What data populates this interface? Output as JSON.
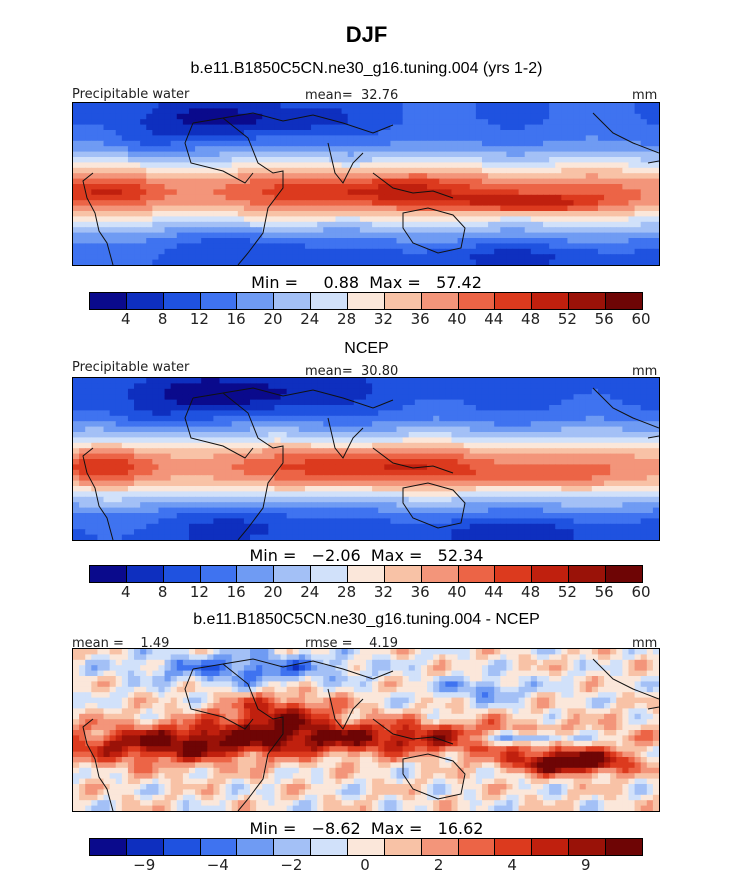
{
  "title": "DJF",
  "palette": [
    "#0a0a8c",
    "#0e2fbf",
    "#1f52e0",
    "#3f73f0",
    "#6f9bf3",
    "#a3c0f6",
    "#d1e1fa",
    "#fbe7da",
    "#f8c2a6",
    "#f3957a",
    "#ec6446",
    "#dc3a1e",
    "#c0200e",
    "#9a1208",
    "#6e0505"
  ],
  "coast_color": "#111111",
  "panels": [
    {
      "title": "b.e11.B1850C5CN.ne30_g16.tuning.004 (yrs 1-2)",
      "left_label": "Precipitable water",
      "mean_label": "mean=  32.76",
      "units": "mm",
      "minmax": "Min =     0.88  Max =   57.42",
      "colorbar_labels": [
        "4",
        "8",
        "12",
        "16",
        "20",
        "24",
        "28",
        "32",
        "36",
        "40",
        "44",
        "48",
        "52",
        "56",
        "60"
      ]
    },
    {
      "title": "NCEP",
      "left_label": "Precipitable water",
      "mean_label": "mean=  30.80",
      "units": "mm",
      "minmax": "Min =   −2.06  Max =   52.34",
      "colorbar_labels": [
        "4",
        "8",
        "12",
        "16",
        "20",
        "24",
        "28",
        "32",
        "36",
        "40",
        "44",
        "48",
        "52",
        "56",
        "60"
      ]
    },
    {
      "title": "b.e11.B1850C5CN.ne30_g16.tuning.004 - NCEP",
      "left_label": "mean =    1.49",
      "mean_label": "rmse =    4.19",
      "units": "mm",
      "minmax": "Min =   −8.62  Max =   16.62",
      "colorbar_labels": [
        "−9",
        "−4",
        "−2",
        "0",
        "2",
        "4",
        "9"
      ]
    }
  ],
  "chart_data": [
    {
      "type": "heatmap",
      "title": "b.e11.B1850C5CN.ne30_g16.tuning.004 (yrs 1-2)",
      "variable": "Precipitable water",
      "units": "mm",
      "mean": 32.76,
      "min": 0.88,
      "max": 57.42,
      "colorbar_levels": [
        4,
        8,
        12,
        16,
        20,
        24,
        28,
        32,
        36,
        40,
        44,
        48,
        52,
        56,
        60
      ]
    },
    {
      "type": "heatmap",
      "title": "NCEP",
      "variable": "Precipitable water",
      "units": "mm",
      "mean": 30.8,
      "min": -2.06,
      "max": 52.34,
      "colorbar_levels": [
        4,
        8,
        12,
        16,
        20,
        24,
        28,
        32,
        36,
        40,
        44,
        48,
        52,
        56,
        60
      ]
    },
    {
      "type": "heatmap",
      "title": "b.e11.B1850C5CN.ne30_g16.tuning.004 - NCEP",
      "units": "mm",
      "mean": 1.49,
      "rmse": 4.19,
      "min": -8.62,
      "max": 16.62,
      "colorbar_levels": [
        -9,
        -4,
        -2,
        0,
        2,
        4,
        9
      ]
    }
  ]
}
